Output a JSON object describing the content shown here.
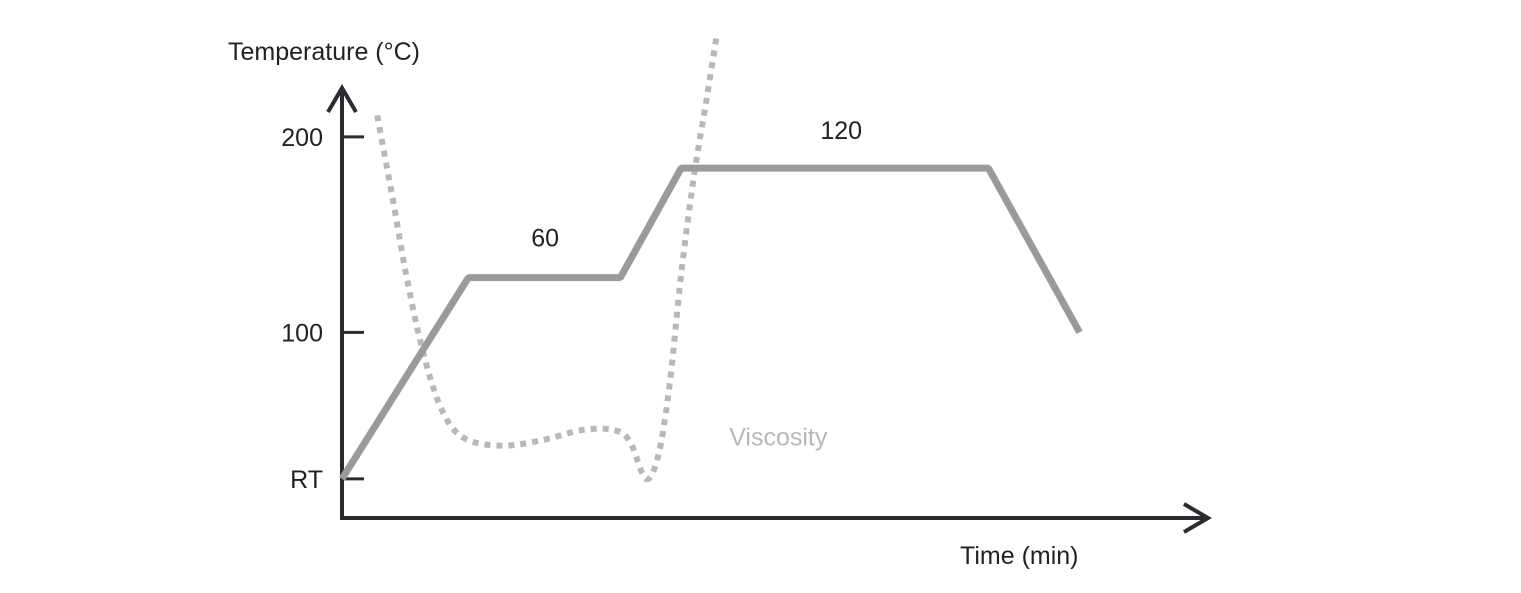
{
  "chart_data": {
    "type": "line",
    "ylabel": "Temperature (°C)",
    "xlabel": "Time (min)",
    "yticks": [
      {
        "label": "RT",
        "value": 25
      },
      {
        "label": "100",
        "value": 100
      },
      {
        "label": "200",
        "value": 200
      }
    ],
    "xlim": [
      0,
      500
    ],
    "ylim": [
      5,
      225
    ],
    "series": [
      {
        "role": "temperature",
        "style": "solid",
        "color": "#9a9a9a",
        "points": [
          {
            "x": 0,
            "y": 25
          },
          {
            "x": 79,
            "y": 128
          },
          {
            "x": 174,
            "y": 128
          },
          {
            "x": 212,
            "y": 184
          },
          {
            "x": 404,
            "y": 184
          },
          {
            "x": 461,
            "y": 100
          }
        ]
      },
      {
        "name": "Viscosity",
        "role": "viscosity",
        "style": "dotted",
        "color": "#b8b8b8",
        "qualitative": true,
        "points": [
          {
            "x": 22,
            "y": 211
          },
          {
            "x": 32,
            "y": 167
          },
          {
            "x": 40,
            "y": 130
          },
          {
            "x": 50,
            "y": 92
          },
          {
            "x": 62,
            "y": 61
          },
          {
            "x": 76,
            "y": 46
          },
          {
            "x": 100,
            "y": 42
          },
          {
            "x": 126,
            "y": 45
          },
          {
            "x": 150,
            "y": 50
          },
          {
            "x": 170,
            "y": 50
          },
          {
            "x": 180,
            "y": 44
          },
          {
            "x": 190,
            "y": 25
          },
          {
            "x": 198,
            "y": 38
          },
          {
            "x": 205,
            "y": 75
          },
          {
            "x": 212,
            "y": 130
          },
          {
            "x": 220,
            "y": 180
          },
          {
            "x": 228,
            "y": 220
          },
          {
            "x": 234,
            "y": 251
          }
        ]
      }
    ],
    "annotations": [
      {
        "text": "60",
        "x": 127,
        "y": 144
      },
      {
        "text": "120",
        "x": 312,
        "y": 199
      },
      {
        "text": "Viscosity",
        "x": 242,
        "y": 42,
        "color": "#b8b8b8"
      }
    ],
    "axis_color": "#2b2b30",
    "grid": false
  }
}
